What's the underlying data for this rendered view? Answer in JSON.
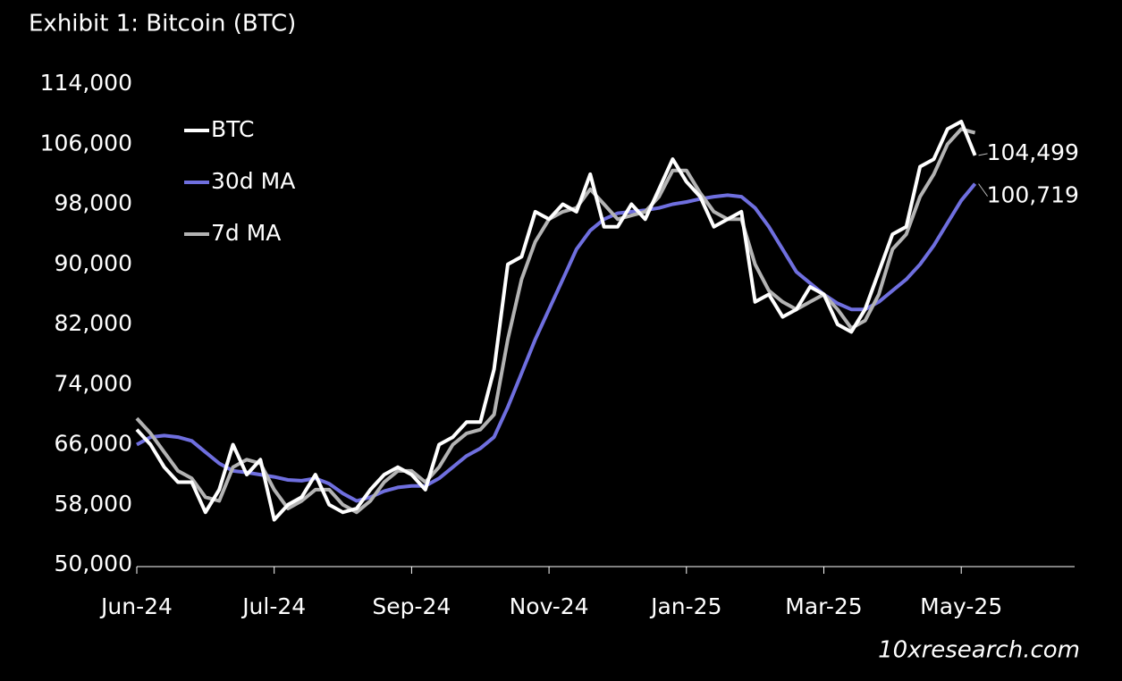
{
  "chart_data": {
    "type": "line",
    "title": "Exhibit 1: Bitcoin (BTC)",
    "source": "10xresearch.com",
    "categories": [
      "Jun-24",
      null,
      null,
      null,
      null,
      null,
      null,
      null,
      null,
      null,
      "Jul-24",
      null,
      null,
      null,
      null,
      null,
      null,
      null,
      null,
      null,
      "Sep-24",
      null,
      null,
      null,
      null,
      null,
      null,
      null,
      null,
      null,
      "Nov-24",
      null,
      null,
      null,
      null,
      null,
      null,
      null,
      null,
      null,
      "Jan-25",
      null,
      null,
      null,
      null,
      null,
      null,
      null,
      null,
      null,
      "Mar-25",
      null,
      null,
      null,
      null,
      null,
      null,
      null,
      null,
      null,
      "May-25",
      null
    ],
    "series": [
      {
        "name": "BTC",
        "color": "#ffffff",
        "last_label": "104,499",
        "values": [
          68000,
          66000,
          63000,
          61000,
          61000,
          57000,
          60000,
          66000,
          62000,
          64000,
          56000,
          58000,
          59000,
          62000,
          58000,
          57000,
          57500,
          60000,
          62000,
          63000,
          62000,
          60000,
          66000,
          67000,
          69000,
          69000,
          76000,
          90000,
          91000,
          97000,
          96000,
          98000,
          97000,
          102000,
          95000,
          95000,
          98000,
          96000,
          100000,
          104000,
          101000,
          99000,
          95000,
          96000,
          97000,
          85000,
          86000,
          83000,
          84000,
          87000,
          86000,
          82000,
          81000,
          84000,
          89000,
          94000,
          95000,
          103000,
          104000,
          108000,
          109000,
          104499
        ]
      },
      {
        "name": "30d MA",
        "color": "#6f6fdf",
        "last_label": "100,719",
        "values": [
          66000,
          67000,
          67200,
          67000,
          66500,
          65000,
          63500,
          62500,
          62300,
          62000,
          61700,
          61300,
          61200,
          61500,
          60800,
          59500,
          58500,
          59000,
          59800,
          60300,
          60500,
          60500,
          61500,
          63000,
          64500,
          65500,
          67000,
          71000,
          75500,
          80000,
          84000,
          88000,
          92000,
          94500,
          96000,
          96800,
          97000,
          97200,
          97500,
          98000,
          98300,
          98700,
          99000,
          99200,
          99000,
          97500,
          95000,
          92000,
          89000,
          87500,
          86000,
          84800,
          84000,
          84000,
          85000,
          86500,
          88000,
          90000,
          92500,
          95500,
          98500,
          100719
        ]
      },
      {
        "name": "7d MA",
        "color": "#b3b3b3",
        "values": [
          69500,
          67500,
          65000,
          62500,
          61500,
          59000,
          58500,
          63000,
          64000,
          63500,
          60000,
          57500,
          58500,
          60000,
          60000,
          58000,
          57000,
          58500,
          61000,
          62500,
          62500,
          61000,
          63000,
          66000,
          67500,
          68000,
          70000,
          80000,
          88000,
          93000,
          96000,
          97000,
          97500,
          100000,
          98000,
          96000,
          96500,
          97000,
          99000,
          102500,
          102500,
          99500,
          97000,
          96000,
          96000,
          90000,
          86500,
          85000,
          84000,
          85000,
          86000,
          84000,
          81500,
          82500,
          86000,
          92000,
          94000,
          99000,
          102000,
          106000,
          108000,
          107500
        ]
      }
    ],
    "ylim": [
      50000,
      114000
    ],
    "yticks": [
      {
        "value": 50000,
        "label": "50,000"
      },
      {
        "value": 58000,
        "label": "58,000"
      },
      {
        "value": 66000,
        "label": "66,000"
      },
      {
        "value": 74000,
        "label": "74,000"
      },
      {
        "value": 82000,
        "label": "82,000"
      },
      {
        "value": 90000,
        "label": "90,000"
      },
      {
        "value": 98000,
        "label": "98,000"
      },
      {
        "value": 106000,
        "label": "106,000"
      },
      {
        "value": 114000,
        "label": "114,000"
      }
    ],
    "grid": false,
    "legend": "top-left"
  }
}
